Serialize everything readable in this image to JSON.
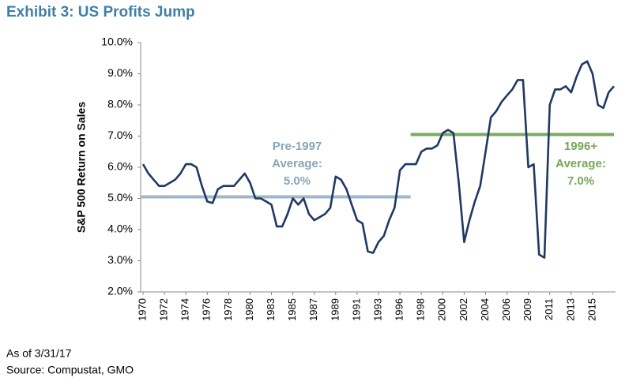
{
  "chart_data": {
    "type": "line",
    "title": "Exhibit 3: US Profits Jump",
    "y_label": "S&P 500 Return on Sales",
    "notes": [
      "As of 3/31/17",
      "Source: Compustat, GMO"
    ],
    "categories": [
      "1970",
      null,
      null,
      null,
      "1972",
      null,
      null,
      null,
      "1974",
      null,
      null,
      null,
      "1976",
      null,
      null,
      null,
      "1978",
      null,
      null,
      null,
      "1980",
      null,
      null,
      null,
      "1983",
      null,
      null,
      null,
      "1985",
      null,
      null,
      null,
      "1987",
      null,
      null,
      null,
      "1989",
      null,
      null,
      null,
      "1991",
      null,
      null,
      null,
      "1993",
      null,
      null,
      null,
      "1996",
      null,
      null,
      null,
      "1998",
      null,
      null,
      null,
      "2000",
      null,
      null,
      null,
      "2002",
      null,
      null,
      null,
      "2004",
      null,
      null,
      null,
      "2006",
      null,
      null,
      null,
      "2009",
      null,
      null,
      null,
      "2011",
      null,
      null,
      null,
      "2013",
      null,
      null,
      null,
      "2015",
      null,
      null,
      null,
      null
    ],
    "series": [
      {
        "name": "S&P 500 Return on Sales",
        "color": "#1f3864",
        "values": [
          6.1,
          5.8,
          5.6,
          5.4,
          5.4,
          5.5,
          5.6,
          5.8,
          6.1,
          6.1,
          6.0,
          5.4,
          4.9,
          4.85,
          5.3,
          5.4,
          5.4,
          5.4,
          5.6,
          5.8,
          5.5,
          5.0,
          5.0,
          4.9,
          4.8,
          4.1,
          4.1,
          4.5,
          5.0,
          4.8,
          5.0,
          4.5,
          4.3,
          4.4,
          4.5,
          4.7,
          5.7,
          5.6,
          5.3,
          4.8,
          4.3,
          4.2,
          3.3,
          3.25,
          3.6,
          3.8,
          4.3,
          4.7,
          5.9,
          6.1,
          6.1,
          6.1,
          6.5,
          6.6,
          6.6,
          6.7,
          7.1,
          7.2,
          7.1,
          5.5,
          3.6,
          4.3,
          4.9,
          5.4,
          6.5,
          7.6,
          7.8,
          8.1,
          8.3,
          8.5,
          8.8,
          8.8,
          6.0,
          6.1,
          3.2,
          3.1,
          8.0,
          8.5,
          8.5,
          8.6,
          8.4,
          8.9,
          9.3,
          9.4,
          9.0,
          8.0,
          7.9,
          8.4,
          8.6
        ]
      }
    ],
    "reference_lines": [
      {
        "label": [
          "Pre-1997",
          "Average:",
          "5.0%"
        ],
        "value": 5.05,
        "span": [
          0,
          50
        ],
        "color": "#9fb7c9",
        "text_color": "#8aa4b9"
      },
      {
        "label": [
          "1996+",
          "Average:",
          "7.0%"
        ],
        "value": 7.05,
        "span": [
          50,
          88
        ],
        "color": "#7aab5c",
        "text_color": "#76a65a"
      }
    ],
    "ylim": [
      2,
      10
    ],
    "yticks": [
      {
        "value": 2,
        "label": "2.0%"
      },
      {
        "value": 3,
        "label": "3.0%"
      },
      {
        "value": 4,
        "label": "4.0%"
      },
      {
        "value": 5,
        "label": "5.0%"
      },
      {
        "value": 6,
        "label": "6.0%"
      },
      {
        "value": 7,
        "label": "7.0%"
      },
      {
        "value": 8,
        "label": "8.0%"
      },
      {
        "value": 9,
        "label": "9.0%"
      },
      {
        "value": 10,
        "label": "10.0%"
      }
    ],
    "grid": false
  }
}
